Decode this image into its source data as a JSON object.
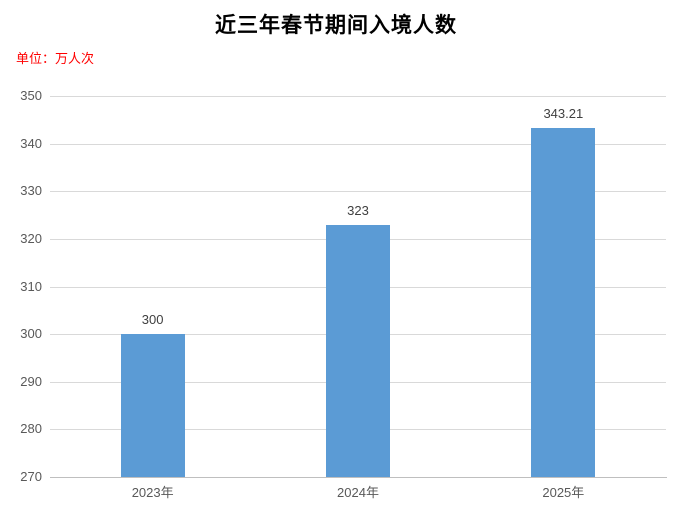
{
  "header": {
    "title": "近三年春节期间入境人数",
    "unit_label": "单位：万人次"
  },
  "colors": {
    "background": "#FFFFFF",
    "title_text": "#000000",
    "unit_text": "#FF0000",
    "bar": "#5B9BD5",
    "gridline": "#D9D9D9",
    "axis_line": "#BFBFBF",
    "axis_text": "#595959",
    "data_label_text": "#404040"
  },
  "chart_data": {
    "type": "bar",
    "title": "近三年春节期间入境人数",
    "unit": "单位：万人次",
    "categories": [
      "2023年",
      "2024年",
      "2025年"
    ],
    "values": [
      300,
      323,
      343.21
    ],
    "data_labels": [
      "300",
      "323",
      "343.21"
    ],
    "xlabel": "",
    "ylabel": "",
    "ylim": [
      270,
      350
    ],
    "ytick_step": 10,
    "yticks": [
      270,
      280,
      290,
      300,
      310,
      320,
      330,
      340,
      350
    ],
    "grid": "horizontal",
    "legend": "none",
    "bar_color": "#5B9BD5"
  }
}
